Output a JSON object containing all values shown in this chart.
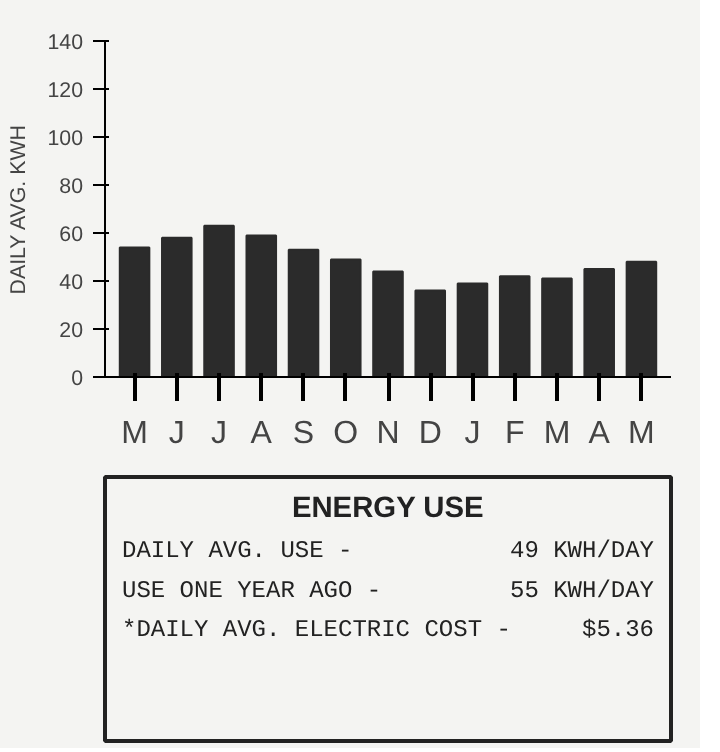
{
  "chart_data": [
    {
      "type": "bar",
      "ylabel": "DAILY AVG. KWH",
      "categories": [
        "M",
        "J",
        "J",
        "A",
        "S",
        "O",
        "N",
        "D",
        "J",
        "F",
        "M",
        "A",
        "M"
      ],
      "values": [
        54,
        58,
        63,
        59,
        53,
        49,
        44,
        36,
        39,
        42,
        41,
        45,
        48
      ],
      "color": "#2b2b2b",
      "ylim": [
        0,
        140
      ],
      "yticks": [
        0,
        20,
        40,
        60,
        80,
        100,
        120,
        140
      ],
      "grid": false
    },
    {
      "type": "other",
      "title": "ENERGY USE",
      "annotations": [
        "DAILY AVG. USE -",
        "49 KWH/DAY",
        "USE ONE YEAR AGO -",
        "55 KWH/DAY",
        "*DAILY AVG. ELECTRIC COST -",
        "$5.36"
      ]
    }
  ]
}
